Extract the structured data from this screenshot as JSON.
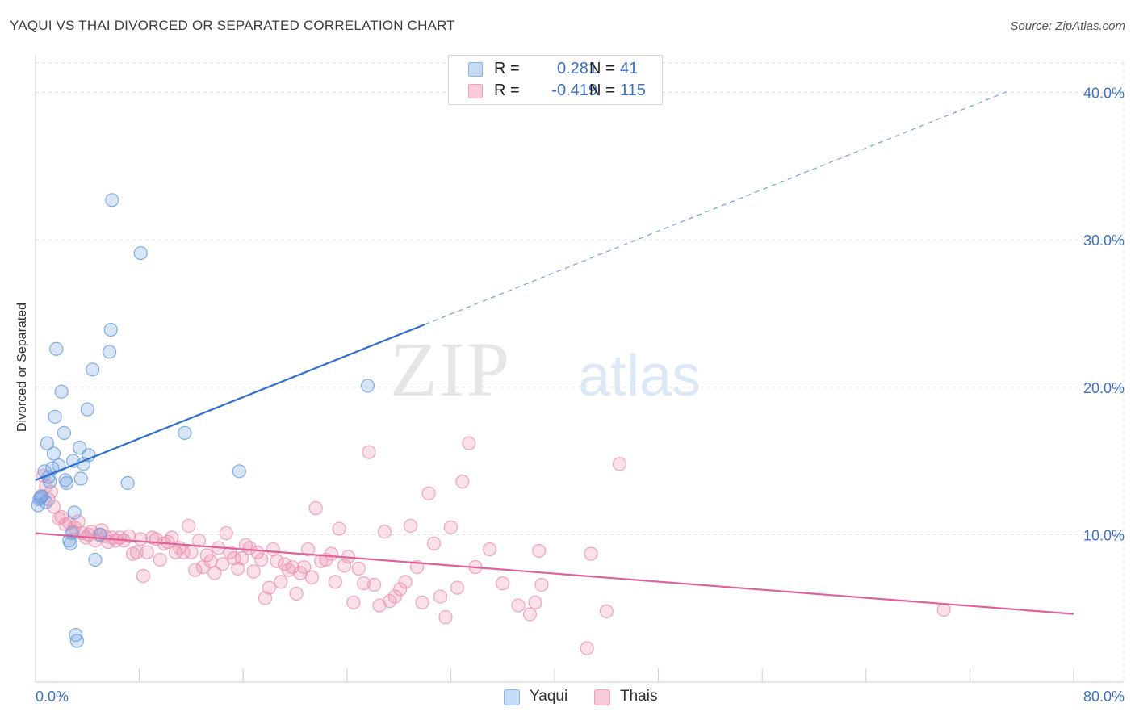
{
  "title": "YAQUI VS THAI DIVORCED OR SEPARATED CORRELATION CHART",
  "source": "Source: ZipAtlas.com",
  "watermark": {
    "zip": "ZIP",
    "atlas": "atlas"
  },
  "legend": {
    "rows": [
      {
        "r_label": "R =",
        "r_value": "0.281",
        "n_label": "N =",
        "n_value": "41",
        "color": "#8db4e8",
        "fill": "#c5daf5"
      },
      {
        "r_label": "R =",
        "r_value": "-0.419",
        "n_label": "N =",
        "n_value": "115",
        "color": "#f0a0bc",
        "fill": "#f9ccdb"
      }
    ]
  },
  "bottom_legend": [
    {
      "label": "Yaqui",
      "color": "#8db4e8",
      "fill": "#c5daf5"
    },
    {
      "label": "Thais",
      "color": "#f0a0bc",
      "fill": "#f9ccdb"
    }
  ],
  "colors": {
    "yaqui_line": "#2f6fd0",
    "thai_line": "#e0609a",
    "yaqui_point": "#6fa0e0",
    "thai_point": "#ee90b0",
    "axis_label": "#3a6fc8",
    "grid": "#dddddd"
  },
  "chart_data": {
    "type": "scatter",
    "title": "YAQUI VS THAI DIVORCED OR SEPARATED CORRELATION CHART",
    "xlabel": "",
    "ylabel": "Divorced or Separated",
    "xlim": [
      0,
      80
    ],
    "ylim": [
      0,
      42
    ],
    "x_tick_labels": [
      "0.0%",
      "80.0%"
    ],
    "y_ticks": [
      10,
      20,
      30,
      40
    ],
    "y_tick_labels": [
      "10.0%",
      "20.0%",
      "30.0%",
      "40.0%"
    ],
    "grid": true,
    "series": [
      {
        "name": "Yaqui",
        "r": 0.281,
        "n": 41,
        "trend": {
          "x0": 0,
          "y0": 13.7,
          "x_solid_end": 30,
          "x_end": 75,
          "slope": 0.352
        },
        "points": [
          [
            0.2,
            12.0
          ],
          [
            0.3,
            12.4
          ],
          [
            0.5,
            12.6
          ],
          [
            0.7,
            14.3
          ],
          [
            0.8,
            12.2
          ],
          [
            0.9,
            16.2
          ],
          [
            1.0,
            13.9
          ],
          [
            1.3,
            14.5
          ],
          [
            1.4,
            15.5
          ],
          [
            1.5,
            18.0
          ],
          [
            1.6,
            22.6
          ],
          [
            1.8,
            14.7
          ],
          [
            2.0,
            19.7
          ],
          [
            2.2,
            16.9
          ],
          [
            2.3,
            13.7
          ],
          [
            2.4,
            13.5
          ],
          [
            2.6,
            9.6
          ],
          [
            2.7,
            9.4
          ],
          [
            2.9,
            15.0
          ],
          [
            3.0,
            11.5
          ],
          [
            3.1,
            3.2
          ],
          [
            3.2,
            2.8
          ],
          [
            3.4,
            15.9
          ],
          [
            3.5,
            13.8
          ],
          [
            3.7,
            14.8
          ],
          [
            4.0,
            18.5
          ],
          [
            4.1,
            15.4
          ],
          [
            4.4,
            21.2
          ],
          [
            4.6,
            8.3
          ],
          [
            5.0,
            10.0
          ],
          [
            5.7,
            22.4
          ],
          [
            5.9,
            32.7
          ],
          [
            5.8,
            23.9
          ],
          [
            7.1,
            13.5
          ],
          [
            8.1,
            29.1
          ],
          [
            11.5,
            16.9
          ],
          [
            15.7,
            14.3
          ],
          [
            25.6,
            20.1
          ],
          [
            0.4,
            12.5
          ],
          [
            1.1,
            13.6
          ],
          [
            2.8,
            10.1
          ]
        ]
      },
      {
        "name": "Thais",
        "r": -0.419,
        "n": 115,
        "trend": {
          "x0": 0,
          "y0": 10.1,
          "x_end": 80,
          "slope": -0.0685
        },
        "points": [
          [
            0.4,
            12.6
          ],
          [
            0.6,
            14.0
          ],
          [
            0.8,
            13.3
          ],
          [
            1.0,
            12.4
          ],
          [
            1.2,
            12.9
          ],
          [
            1.4,
            11.9
          ],
          [
            1.8,
            11.1
          ],
          [
            2.0,
            11.2
          ],
          [
            2.3,
            10.7
          ],
          [
            2.6,
            10.8
          ],
          [
            2.9,
            10.2
          ],
          [
            3.0,
            10.5
          ],
          [
            3.3,
            10.9
          ],
          [
            3.6,
            10.1
          ],
          [
            3.9,
            9.8
          ],
          [
            4.1,
            10.0
          ],
          [
            4.3,
            10.2
          ],
          [
            4.6,
            9.6
          ],
          [
            4.9,
            10.0
          ],
          [
            5.1,
            10.3
          ],
          [
            5.4,
            9.9
          ],
          [
            5.6,
            9.5
          ],
          [
            5.9,
            9.8
          ],
          [
            6.2,
            9.6
          ],
          [
            6.5,
            9.8
          ],
          [
            6.8,
            9.6
          ],
          [
            7.2,
            9.9
          ],
          [
            7.5,
            8.7
          ],
          [
            7.8,
            8.8
          ],
          [
            8.1,
            9.7
          ],
          [
            8.3,
            7.2
          ],
          [
            8.6,
            8.8
          ],
          [
            9.0,
            9.8
          ],
          [
            9.3,
            9.7
          ],
          [
            9.6,
            8.3
          ],
          [
            9.9,
            9.4
          ],
          [
            10.2,
            9.5
          ],
          [
            10.5,
            9.8
          ],
          [
            10.8,
            8.8
          ],
          [
            11.1,
            9.1
          ],
          [
            11.4,
            8.8
          ],
          [
            11.8,
            10.6
          ],
          [
            12.0,
            8.8
          ],
          [
            12.3,
            7.6
          ],
          [
            12.6,
            9.6
          ],
          [
            12.9,
            7.8
          ],
          [
            13.2,
            8.6
          ],
          [
            13.5,
            8.2
          ],
          [
            13.8,
            7.4
          ],
          [
            14.1,
            9.1
          ],
          [
            14.4,
            8.0
          ],
          [
            14.7,
            10.1
          ],
          [
            15.0,
            8.8
          ],
          [
            15.3,
            8.4
          ],
          [
            15.6,
            7.7
          ],
          [
            15.9,
            8.4
          ],
          [
            16.2,
            9.3
          ],
          [
            16.5,
            9.1
          ],
          [
            16.8,
            7.5
          ],
          [
            17.1,
            8.8
          ],
          [
            17.4,
            8.3
          ],
          [
            17.7,
            5.7
          ],
          [
            18.0,
            6.4
          ],
          [
            18.3,
            9.0
          ],
          [
            18.6,
            8.2
          ],
          [
            18.9,
            6.8
          ],
          [
            19.2,
            8.0
          ],
          [
            19.5,
            7.6
          ],
          [
            19.8,
            7.8
          ],
          [
            20.1,
            6.0
          ],
          [
            20.4,
            7.4
          ],
          [
            20.7,
            7.8
          ],
          [
            21.0,
            9.0
          ],
          [
            21.3,
            7.1
          ],
          [
            21.6,
            11.8
          ],
          [
            22.0,
            8.2
          ],
          [
            22.4,
            8.3
          ],
          [
            22.8,
            8.7
          ],
          [
            23.1,
            6.8
          ],
          [
            23.4,
            10.4
          ],
          [
            23.8,
            7.9
          ],
          [
            24.1,
            8.5
          ],
          [
            24.5,
            5.4
          ],
          [
            24.9,
            7.7
          ],
          [
            25.3,
            6.7
          ],
          [
            25.7,
            15.6
          ],
          [
            26.1,
            6.6
          ],
          [
            26.5,
            5.2
          ],
          [
            26.9,
            10.2
          ],
          [
            27.3,
            5.5
          ],
          [
            27.7,
            5.8
          ],
          [
            28.1,
            6.3
          ],
          [
            28.5,
            6.8
          ],
          [
            28.9,
            10.6
          ],
          [
            29.4,
            7.8
          ],
          [
            29.8,
            5.4
          ],
          [
            30.3,
            12.8
          ],
          [
            30.7,
            9.4
          ],
          [
            31.2,
            5.8
          ],
          [
            31.6,
            4.4
          ],
          [
            32.0,
            10.5
          ],
          [
            32.5,
            6.4
          ],
          [
            32.9,
            13.6
          ],
          [
            33.4,
            16.2
          ],
          [
            33.9,
            7.8
          ],
          [
            35.0,
            9.0
          ],
          [
            36.0,
            6.7
          ],
          [
            37.2,
            5.2
          ],
          [
            38.1,
            4.6
          ],
          [
            38.5,
            5.4
          ],
          [
            38.8,
            8.9
          ],
          [
            39.0,
            6.6
          ],
          [
            42.5,
            2.3
          ],
          [
            44.0,
            4.8
          ],
          [
            45.0,
            14.8
          ],
          [
            70.0,
            4.9
          ],
          [
            42.8,
            8.7
          ]
        ]
      }
    ]
  }
}
